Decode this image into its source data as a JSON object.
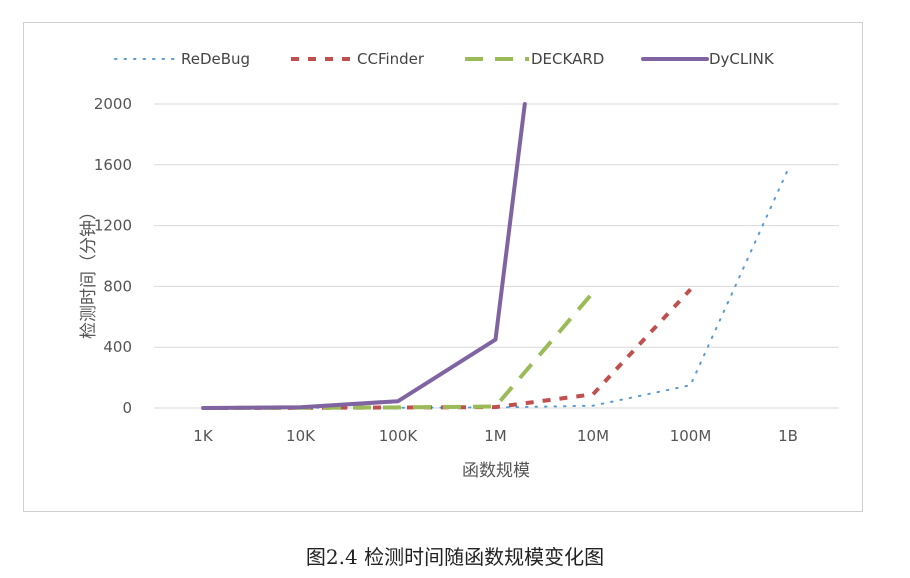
{
  "caption": "图2.4    检测时间随函数规模变化图",
  "chart_data": {
    "type": "line",
    "categories": [
      "1K",
      "10K",
      "100K",
      "1M",
      "10M",
      "100M",
      "1B"
    ],
    "xlabel": "函数规模",
    "ylabel": "检测时间（分钟）",
    "ylim": [
      0,
      2000
    ],
    "yticks": [
      0,
      400,
      800,
      1200,
      1600,
      2000
    ],
    "grid": true,
    "legend_position": "top",
    "series": [
      {
        "name": "ReDeBug",
        "color": "#5b9bd5",
        "style": "dotted",
        "points": [
          [
            0,
            0
          ],
          [
            1,
            1
          ],
          [
            2,
            2
          ],
          [
            3,
            3
          ],
          [
            4,
            15
          ],
          [
            5,
            150
          ],
          [
            6,
            1570
          ]
        ]
      },
      {
        "name": "CCFinder",
        "color": "#c0504d",
        "style": "dashed",
        "points": [
          [
            0,
            0
          ],
          [
            1,
            1
          ],
          [
            2,
            3
          ],
          [
            3,
            6
          ],
          [
            4,
            90
          ],
          [
            5,
            780
          ]
        ]
      },
      {
        "name": "DECKARD",
        "color": "#9bbb59",
        "style": "long-dashed",
        "points": [
          [
            0,
            0
          ],
          [
            1,
            1
          ],
          [
            2,
            4
          ],
          [
            3,
            10
          ],
          [
            4,
            760
          ]
        ]
      },
      {
        "name": "DyCLINK",
        "color": "#8064a2",
        "style": "solid",
        "points": [
          [
            0,
            0
          ],
          [
            1,
            5
          ],
          [
            2,
            45
          ],
          [
            3,
            450
          ],
          [
            3.3,
            2000
          ]
        ]
      }
    ]
  }
}
